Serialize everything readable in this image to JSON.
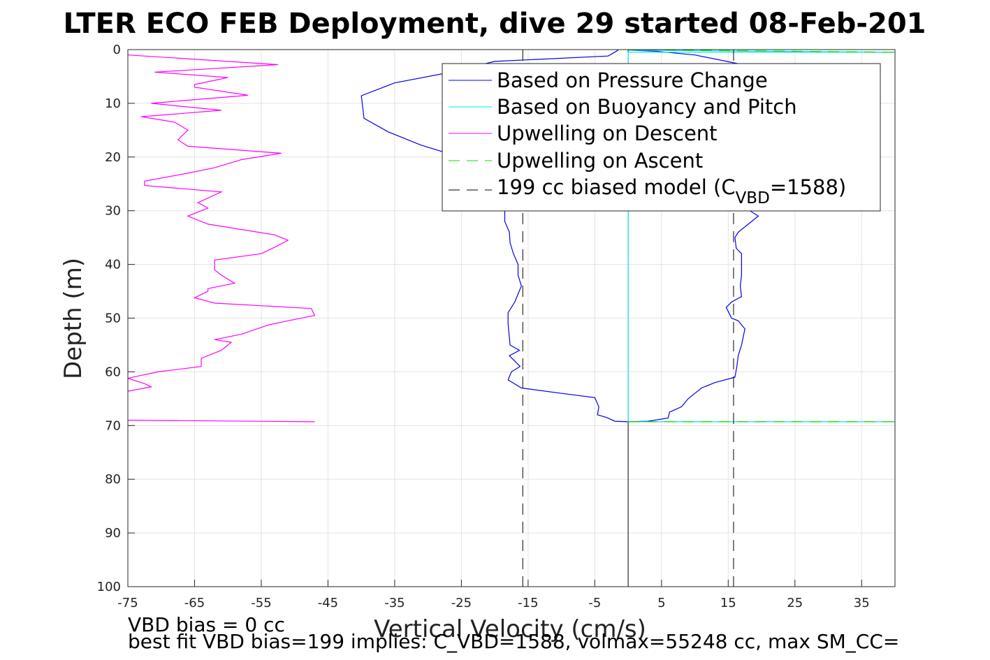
{
  "chart_data": {
    "type": "line",
    "title": "LTER ECO FEB Deployment, dive 29 started 08-Feb-201",
    "xlabel": "Vertical Velocity (cm/s)",
    "ylabel": "Depth (m)",
    "xlim": [
      -75,
      40
    ],
    "ylim": [
      0,
      100
    ],
    "y_reversed": true,
    "grid": true,
    "legend_position": "top-right",
    "x_ticks": [
      -75,
      -65,
      -55,
      -45,
      -35,
      -25,
      -15,
      -5,
      5,
      15,
      25,
      35
    ],
    "y_ticks": [
      0,
      10,
      20,
      30,
      40,
      50,
      60,
      70,
      80,
      90,
      100
    ],
    "series": [
      {
        "name": "Based on Pressure Change",
        "color": "#0000ee",
        "style": "solid",
        "points": [
          [
            -1.5,
            0.1
          ],
          [
            -3,
            1.2
          ],
          [
            -20,
            2.2
          ],
          [
            -27,
            4.3
          ],
          [
            -35,
            6.2
          ],
          [
            -40,
            8.6
          ],
          [
            -39.6,
            12.8
          ],
          [
            -36,
            15.3
          ],
          [
            -31,
            17.8
          ],
          [
            -26,
            19.7
          ],
          [
            -23,
            21
          ],
          [
            -20,
            23
          ],
          [
            -19,
            26
          ],
          [
            -18.5,
            29
          ],
          [
            -18.5,
            32
          ],
          [
            -17.8,
            34
          ],
          [
            -17.7,
            36
          ],
          [
            -17.2,
            38
          ],
          [
            -16.5,
            40
          ],
          [
            -16.5,
            42
          ],
          [
            -16,
            44
          ],
          [
            -17,
            47
          ],
          [
            -18,
            49
          ],
          [
            -18,
            51
          ],
          [
            -17.7,
            55
          ],
          [
            -16.3,
            56
          ],
          [
            -17.8,
            57
          ],
          [
            -16.2,
            59
          ],
          [
            -17.5,
            60
          ],
          [
            -18,
            61.5
          ],
          [
            -16,
            63
          ],
          [
            -10,
            64
          ],
          [
            -5,
            64.8
          ],
          [
            -4.4,
            66.5
          ],
          [
            -4.6,
            68
          ],
          [
            -3.2,
            68.5
          ],
          [
            -2,
            69.2
          ],
          [
            0,
            69.3
          ],
          [
            3,
            69.2
          ],
          [
            6,
            68.6
          ],
          [
            6.2,
            67.5
          ],
          [
            8,
            66.5
          ],
          [
            9,
            65
          ],
          [
            10,
            64
          ],
          [
            11,
            63
          ],
          [
            13,
            62
          ],
          [
            16,
            61
          ],
          [
            16.3,
            59
          ],
          [
            16.5,
            57
          ],
          [
            17,
            55
          ],
          [
            17.5,
            52
          ],
          [
            16.5,
            50.5
          ],
          [
            15.5,
            50
          ],
          [
            14.7,
            48
          ],
          [
            15.5,
            47
          ],
          [
            17,
            46
          ],
          [
            16.8,
            44
          ],
          [
            17,
            42
          ],
          [
            17,
            40
          ],
          [
            17,
            38
          ],
          [
            16.2,
            37
          ],
          [
            16,
            35
          ],
          [
            16.5,
            34
          ],
          [
            18.5,
            32
          ],
          [
            19.5,
            31
          ],
          [
            17,
            29
          ],
          [
            18,
            27
          ],
          [
            19,
            24
          ],
          [
            21,
            21
          ],
          [
            23,
            15
          ],
          [
            22,
            10
          ],
          [
            21,
            5.5
          ],
          [
            18,
            3
          ],
          [
            10,
            1
          ],
          [
            4,
            0.3
          ],
          [
            0,
            0.1
          ]
        ]
      },
      {
        "name": "Based on Buoyancy and Pitch",
        "color": "#00e8e8",
        "style": "solid",
        "points": [
          [
            0,
            0.1
          ],
          [
            40,
            0.5
          ],
          [
            0,
            0.5
          ],
          [
            0,
            69.3
          ],
          [
            40,
            69.3
          ]
        ]
      },
      {
        "name": "Upwelling on Descent",
        "color": "#ff00ff",
        "style": "solid",
        "points": [
          [
            -75,
            1
          ],
          [
            -52.5,
            2.8
          ],
          [
            -71,
            4.2
          ],
          [
            -60,
            5.2
          ],
          [
            -65,
            6.5
          ],
          [
            -65,
            7
          ],
          [
            -57,
            8.5
          ],
          [
            -71.5,
            10
          ],
          [
            -61,
            11.3
          ],
          [
            -73,
            12.5
          ],
          [
            -68,
            13.5
          ],
          [
            -66,
            15
          ],
          [
            -67.5,
            16.8
          ],
          [
            -66,
            18
          ],
          [
            -52,
            19.3
          ],
          [
            -58,
            20.5
          ],
          [
            -62,
            22
          ],
          [
            -66,
            23
          ],
          [
            -72.5,
            24.5
          ],
          [
            -72.5,
            25.3
          ],
          [
            -61,
            26.5
          ],
          [
            -64.5,
            28.5
          ],
          [
            -63,
            29.5
          ],
          [
            -66,
            31
          ],
          [
            -63,
            32.5
          ],
          [
            -53,
            34.5
          ],
          [
            -51,
            35.5
          ],
          [
            -52.5,
            36.5
          ],
          [
            -55,
            38
          ],
          [
            -62,
            39.2
          ],
          [
            -62,
            41
          ],
          [
            -61,
            42
          ],
          [
            -59,
            43.5
          ],
          [
            -63,
            44.5
          ],
          [
            -63,
            45
          ],
          [
            -65,
            46.2
          ],
          [
            -62,
            47.2
          ],
          [
            -47.5,
            48.2
          ],
          [
            -47,
            49.5
          ],
          [
            -51,
            50.5
          ],
          [
            -54,
            51.3
          ],
          [
            -58,
            53
          ],
          [
            -62,
            54
          ],
          [
            -59.5,
            54.5
          ],
          [
            -61,
            56
          ],
          [
            -64,
            57.5
          ],
          [
            -64,
            59
          ],
          [
            -70.5,
            60
          ],
          [
            -75,
            61.2
          ],
          [
            -72.5,
            62.2
          ],
          [
            -71.5,
            62.8
          ],
          [
            -75,
            63.6
          ],
          [
            null,
            null
          ],
          [
            -75,
            69
          ],
          [
            -47,
            69.3
          ]
        ]
      },
      {
        "name": "Upwelling on Ascent",
        "color": "#00e000",
        "style": "dashed",
        "points": [
          [
            0,
            0
          ],
          [
            40,
            0.5
          ],
          [
            null,
            null
          ],
          [
            0,
            69.3
          ],
          [
            40,
            69.3
          ]
        ]
      },
      {
        "name": "199 cc biased model (C_VBD=1588)",
        "color": "#000000",
        "style": "dashed",
        "legend_label": {
          "prefix": "199 cc biased model (C",
          "sub": "VBD",
          "suffix": "=1588)"
        },
        "lines_x": [
          -15.8,
          15.8
        ]
      }
    ],
    "reference_line_x": 0
  },
  "footer": {
    "line1": "VBD bias = 0 cc",
    "line2": "best fit VBD bias=199 implies: C_VBD=1588, volmax=55248 cc, max SM_CC="
  }
}
